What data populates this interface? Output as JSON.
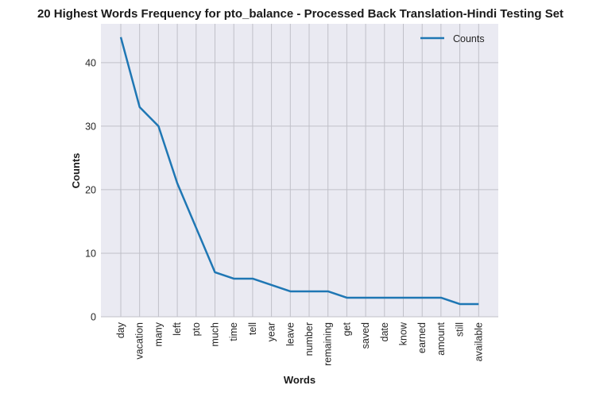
{
  "chart_data": {
    "type": "line",
    "title": "20 Highest Words Frequency for pto_balance - Processed Back Translation-Hindi Testing Set",
    "xlabel": "Words",
    "ylabel": "Counts",
    "categories": [
      "day",
      "vacation",
      "many",
      "left",
      "pto",
      "much",
      "time",
      "tell",
      "year",
      "leave",
      "number",
      "remaining",
      "get",
      "saved",
      "date",
      "know",
      "earned",
      "amount",
      "still",
      "available"
    ],
    "series": [
      {
        "name": "Counts",
        "values": [
          44,
          33,
          30,
          21,
          14,
          7,
          6,
          6,
          5,
          4,
          4,
          4,
          3,
          3,
          3,
          3,
          3,
          3,
          2,
          2
        ],
        "color": "#1f77b4"
      }
    ],
    "yticks": [
      0,
      10,
      20,
      30,
      40
    ],
    "ylim": [
      0,
      46.1
    ],
    "grid": true,
    "legend": "top-right",
    "background": "#eaeaf2",
    "grid_color": "#c0c0c8"
  }
}
